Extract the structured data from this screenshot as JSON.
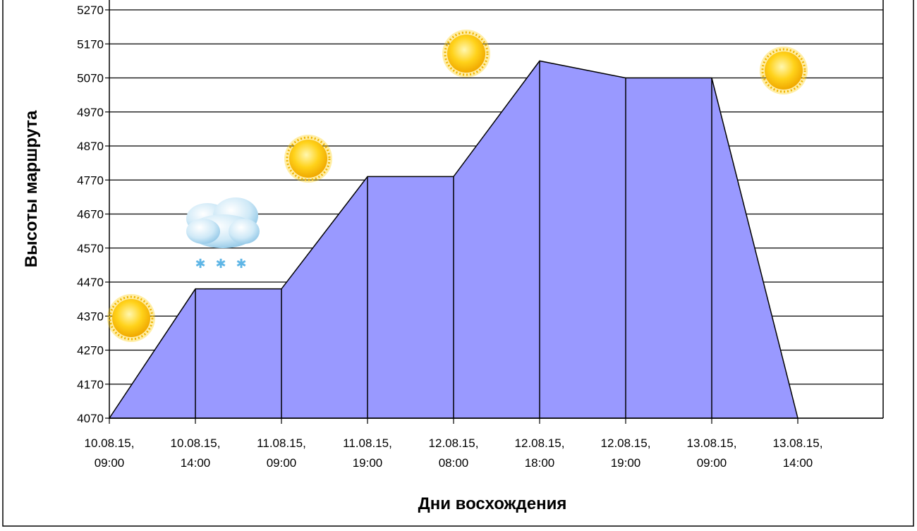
{
  "chart_data": {
    "type": "area",
    "title": "",
    "xlabel": "Дни восхождения",
    "ylabel": "Высоты маршрута",
    "ylim": [
      4070,
      5270
    ],
    "y_ticks": [
      4070,
      4170,
      4270,
      4370,
      4470,
      4570,
      4670,
      4770,
      4870,
      4970,
      5070,
      5170,
      5270
    ],
    "categories": [
      [
        "10.08.15,",
        "09:00"
      ],
      [
        "10.08.15,",
        "14:00"
      ],
      [
        "11.08.15,",
        "09:00"
      ],
      [
        "11.08.15,",
        "19:00"
      ],
      [
        "12.08.15,",
        "08:00"
      ],
      [
        "12.08.15,",
        "18:00"
      ],
      [
        "12.08.15,",
        "19:00"
      ],
      [
        "13.08.15,",
        "09:00"
      ],
      [
        "13.08.15,",
        "14:00"
      ]
    ],
    "values": [
      4070,
      4450,
      4450,
      4780,
      4780,
      5120,
      5070,
      5070,
      4070
    ],
    "grid": true,
    "fill_color": "#9999ff",
    "weather_icons": [
      "sun-icon",
      "snow-cloud-icon",
      "sun-icon",
      "sun-icon",
      "sun-icon"
    ]
  }
}
